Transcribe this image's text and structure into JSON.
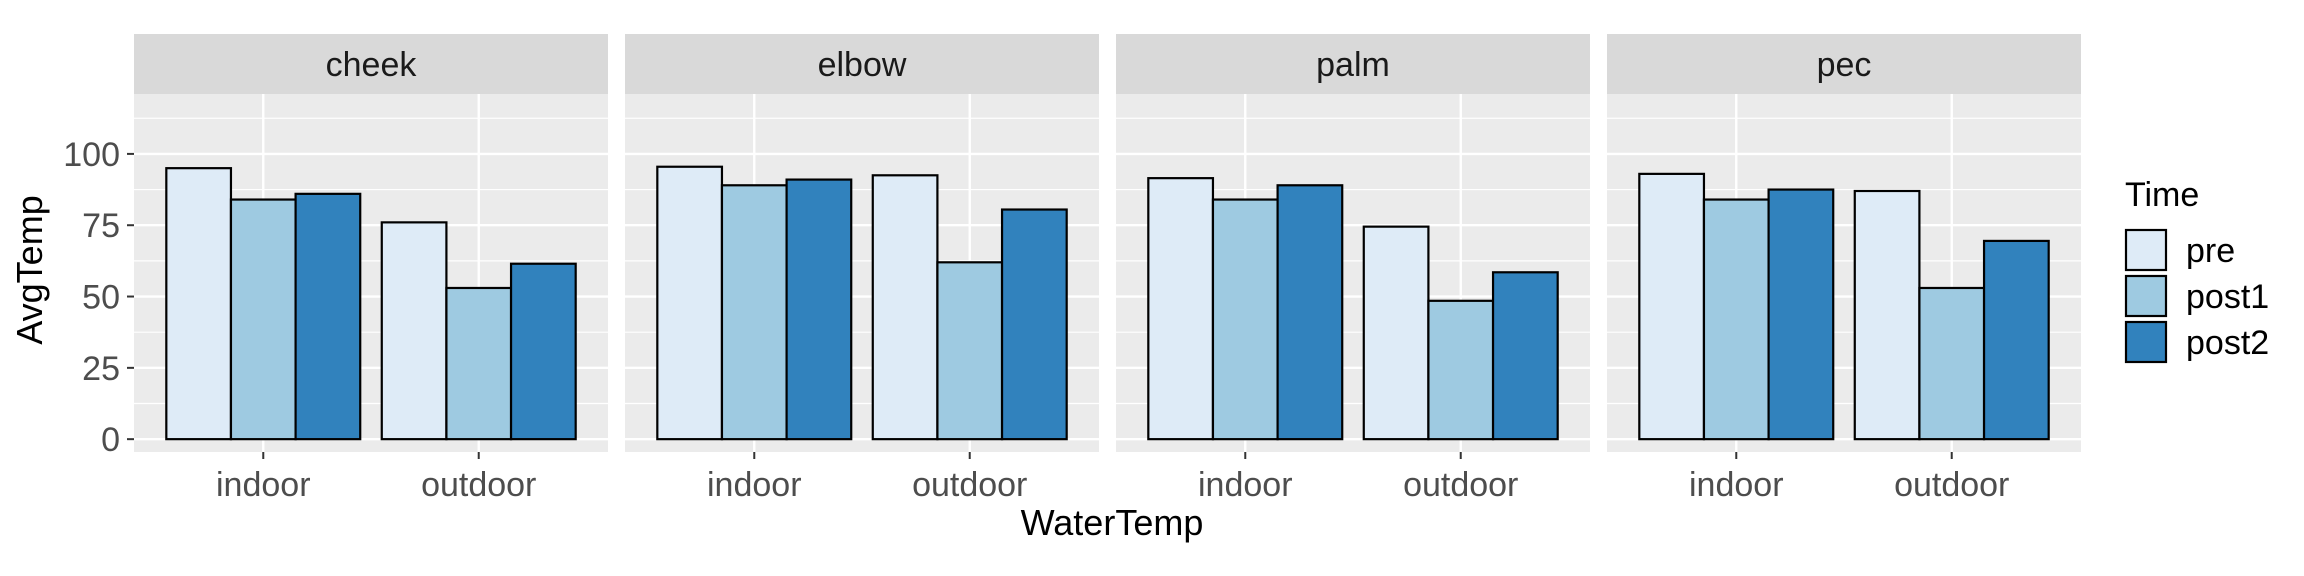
{
  "chart_data": {
    "type": "bar",
    "xlabel": "WaterTemp",
    "ylabel": "AvgTemp",
    "ylim": [
      -4.5,
      121
    ],
    "yticks": [
      0,
      25,
      50,
      75,
      100
    ],
    "categories": [
      "indoor",
      "outdoor"
    ],
    "grid": true,
    "legend_position": "right",
    "legend_title": "Time",
    "series": [
      {
        "name": "pre",
        "color": "#DEEBF7"
      },
      {
        "name": "post1",
        "color": "#9ECAE1"
      },
      {
        "name": "post2",
        "color": "#3182BD"
      }
    ],
    "panels": [
      {
        "title": "cheek",
        "values": {
          "pre": [
            95,
            76
          ],
          "post1": [
            84,
            53
          ],
          "post2": [
            86,
            61.5
          ]
        }
      },
      {
        "title": "elbow",
        "values": {
          "pre": [
            95.5,
            92.5
          ],
          "post1": [
            89,
            62
          ],
          "post2": [
            91,
            80.5
          ]
        }
      },
      {
        "title": "palm",
        "values": {
          "pre": [
            91.5,
            74.5
          ],
          "post1": [
            84,
            48.5
          ],
          "post2": [
            89,
            58.5
          ]
        }
      },
      {
        "title": "pec",
        "values": {
          "pre": [
            93,
            87
          ],
          "post1": [
            84,
            53
          ],
          "post2": [
            87.5,
            69.5
          ]
        }
      }
    ]
  },
  "colors": {
    "panel_background": "#EBEBEB",
    "strip_background": "#D9D9D9",
    "grid_major": "#FFFFFF",
    "bar_outline": "#000000",
    "axis_text": "#4D4D4D",
    "title_text": "#000000"
  }
}
